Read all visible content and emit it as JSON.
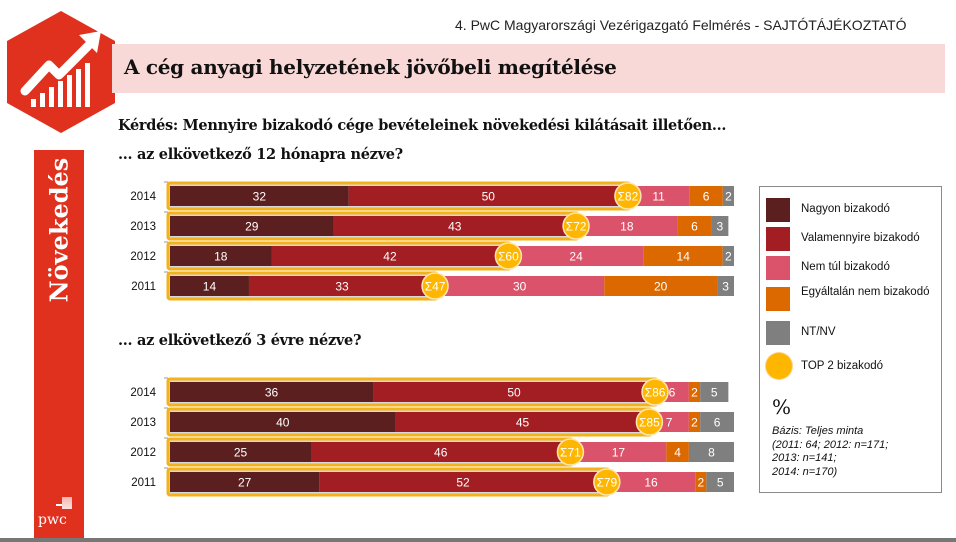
{
  "header": {
    "doc_title": "4. PwC Magyarországi Vezérigazgató Felmérés - SAJTÓTÁJÉKOZTATÓ",
    "slide_title": "A cég anyagi helyzetének jövőbeli megítélése",
    "section_label": "Növekedés",
    "brand": "pwc"
  },
  "colors": {
    "brand_red": "#e0301e",
    "title_band": "#f9d9d8",
    "nagyon": "#5c1f1f",
    "valamennyire": "#a31e22",
    "nem_tul": "#db536a",
    "egyaltalan": "#dc6900",
    "ntnv": "#7f7f7f",
    "top2": "#ffb600"
  },
  "question": {
    "main": "Kérdés: Mennyire bizakodó cége bevételeinek növekedési kilátásait illetően...",
    "sub1": "... az elkövetkező 12 hónapra nézve?",
    "sub2": "... az elkövetkező 3 évre nézve?"
  },
  "legend": {
    "items": [
      {
        "label": "Nagyon bizakodó",
        "color": "#5c1f1f",
        "shape": "square"
      },
      {
        "label": "Valamennyire bizakodó",
        "color": "#a31e22",
        "shape": "square"
      },
      {
        "label": "Nem túl bizakodó",
        "color": "#db536a",
        "shape": "square"
      },
      {
        "label": "Egyáltalán nem bizakodó",
        "color": "#dc6900",
        "shape": "square"
      },
      {
        "label": "NT/NV",
        "color": "#7f7f7f",
        "shape": "square"
      },
      {
        "label": "TOP 2 bizakodó",
        "color": "#ffb600",
        "shape": "circle"
      }
    ],
    "unit": "%",
    "base_lines": [
      "Bázis: Teljes minta",
      "(2011: 64; 2012: n=171;",
      "2013: n=141;",
      "2014: n=170)"
    ]
  },
  "chart_data": [
    {
      "type": "bar",
      "orientation": "horizontal-stacked",
      "title": "... az elkövetkező 12 hónapra nézve?",
      "unit": "%",
      "categories": [
        "2014",
        "2013",
        "2012",
        "2011"
      ],
      "series": [
        {
          "name": "Nagyon bizakodó",
          "values": [
            32,
            29,
            18,
            14
          ]
        },
        {
          "name": "Valamennyire bizakodó",
          "values": [
            50,
            43,
            42,
            33
          ]
        },
        {
          "name": "Nem túl bizakodó",
          "values": [
            11,
            18,
            24,
            30
          ]
        },
        {
          "name": "Egyáltalán nem bizakodó",
          "values": [
            6,
            6,
            14,
            20
          ]
        },
        {
          "name": "NT/NV",
          "values": [
            2,
            3,
            2,
            3
          ]
        }
      ],
      "top2": {
        "name": "TOP 2 bizakodó",
        "prefix": "Σ",
        "values": [
          82,
          72,
          60,
          47
        ]
      },
      "xlim": [
        0,
        100
      ]
    },
    {
      "type": "bar",
      "orientation": "horizontal-stacked",
      "title": "... az elkövetkező 3 évre nézve?",
      "unit": "%",
      "categories": [
        "2014",
        "2013",
        "2012",
        "2011"
      ],
      "series": [
        {
          "name": "Nagyon bizakodó",
          "values": [
            36,
            40,
            25,
            27
          ]
        },
        {
          "name": "Valamennyire bizakodó",
          "values": [
            50,
            45,
            46,
            52
          ]
        },
        {
          "name": "Nem túl bizakodó",
          "values": [
            6,
            7,
            17,
            16
          ]
        },
        {
          "name": "Egyáltalán nem bizakodó",
          "values": [
            2,
            2,
            4,
            2
          ]
        },
        {
          "name": "NT/NV",
          "values": [
            5,
            6,
            8,
            5
          ]
        }
      ],
      "top2": {
        "name": "TOP 2 bizakodó",
        "prefix": "Σ",
        "values": [
          86,
          85,
          71,
          79
        ]
      },
      "xlim": [
        0,
        100
      ]
    }
  ]
}
